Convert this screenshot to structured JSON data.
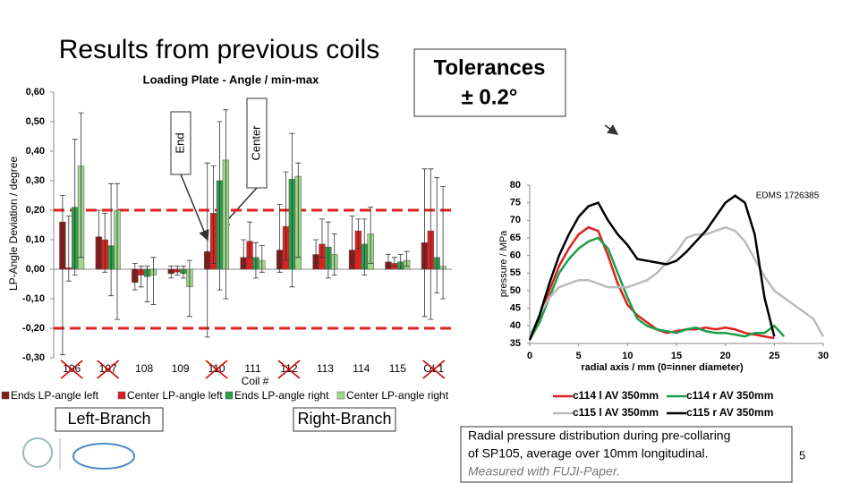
{
  "title": "Results from previous coils",
  "tolerances": {
    "title": "Tolerances",
    "value": "± 0.2°"
  },
  "callouts": [
    "End",
    "Center"
  ],
  "branches": [
    "Left-Branch",
    "Right-Branch"
  ],
  "caption": [
    "Radial pressure distribution during pre-collaring",
    "of SP105, average over 10mm longitudinal.",
    "Measured with FUJI-Paper."
  ],
  "page_number": "5",
  "chart_data": [
    {
      "type": "bar",
      "title": "Loading Plate - Angle / min-max",
      "x_label": "Coil #",
      "y_label": "LP-Angle Deviation / degree",
      "categories": [
        "106",
        "107",
        "108",
        "109",
        "110",
        "111",
        "112",
        "113",
        "114",
        "115",
        "OL1"
      ],
      "crossed_out": [
        true,
        true,
        false,
        false,
        true,
        false,
        true,
        false,
        false,
        false,
        true
      ],
      "series": [
        {
          "name": "Ends LP-angle left",
          "color": "#8b1a1a",
          "values": [
            0.16,
            0.11,
            -0.045,
            -0.015,
            0.06,
            0.04,
            0.065,
            0.05,
            0.065,
            0.025,
            0.09
          ],
          "min": [
            -0.29,
            0.01,
            -0.07,
            -0.03,
            -0.23,
            0.01,
            -0.01,
            0.02,
            0.02,
            0.01,
            -0.16
          ],
          "max": [
            0.25,
            0.2,
            0.02,
            0.01,
            0.36,
            0.1,
            0.22,
            0.1,
            0.18,
            0.05,
            0.34
          ]
        },
        {
          "name": "Center LP-angle left",
          "color": "#e02020",
          "values": [
            0.005,
            0.1,
            -0.02,
            -0.01,
            0.19,
            0.095,
            0.145,
            0.085,
            0.13,
            0.02,
            0.13
          ],
          "min": [
            -0.04,
            -0.01,
            -0.06,
            -0.02,
            0.02,
            0.04,
            0.03,
            0.04,
            0.07,
            0.01,
            -0.17
          ],
          "max": [
            0.18,
            0.19,
            0.01,
            0.01,
            0.35,
            0.16,
            0.33,
            0.17,
            0.17,
            0.04,
            0.34
          ]
        },
        {
          "name": "Ends LP-angle right",
          "color": "#2e9e4a",
          "values": [
            0.21,
            0.08,
            -0.025,
            -0.015,
            0.3,
            0.04,
            0.305,
            0.075,
            0.085,
            0.025,
            0.04
          ],
          "min": [
            -0.02,
            -0.09,
            -0.11,
            -0.03,
            -0.07,
            -0.03,
            -0.06,
            -0.03,
            -0.02,
            0.0,
            -0.08
          ],
          "max": [
            0.44,
            0.29,
            0.01,
            0.01,
            0.5,
            0.09,
            0.46,
            0.16,
            0.17,
            0.05,
            0.31
          ]
        },
        {
          "name": "Center LP-angle right",
          "color": "#9fd68a",
          "values": [
            0.35,
            0.2,
            -0.02,
            -0.06,
            0.37,
            0.03,
            0.315,
            0.05,
            0.12,
            0.03,
            0.01
          ],
          "min": [
            0.04,
            -0.17,
            -0.12,
            -0.16,
            -0.1,
            -0.01,
            0.04,
            -0.02,
            0.02,
            0.01,
            -0.1
          ],
          "max": [
            0.53,
            0.29,
            0.04,
            0.03,
            0.54,
            0.08,
            0.36,
            0.12,
            0.21,
            0.06,
            0.28
          ]
        }
      ],
      "reference_lines": [
        0.2,
        -0.2
      ],
      "reference_color": "#e02020",
      "ylim": [
        -0.3,
        0.6
      ],
      "yticks": [
        {
          "value": 0.6,
          "label": "0,60"
        },
        {
          "value": 0.5,
          "label": "0,50"
        },
        {
          "value": 0.4,
          "label": "0,40"
        },
        {
          "value": 0.3,
          "label": "0,30"
        },
        {
          "value": 0.2,
          "label": "0,20"
        },
        {
          "value": 0.1,
          "label": "0,10"
        },
        {
          "value": 0,
          "label": "0,00"
        },
        {
          "value": -0.1,
          "label": "-0,10"
        },
        {
          "value": -0.2,
          "label": "-0,20"
        },
        {
          "value": -0.3,
          "label": "-0,30"
        }
      ]
    },
    {
      "type": "line",
      "annotation": "EDMS 1726385",
      "x_label": "radial axis / mm (0=inner diameter)",
      "y_label": "pressure / MPa",
      "x": [
        0,
        1,
        2,
        3,
        4,
        5,
        6,
        7,
        8,
        9,
        10,
        11,
        12,
        13,
        14,
        15,
        16,
        17,
        18,
        19,
        20,
        21,
        22,
        23,
        24,
        25,
        26,
        27,
        28,
        29,
        30
      ],
      "series": [
        {
          "name": "c114 l AV 350mm",
          "color": "#e02020",
          "values": [
            36,
            42,
            50,
            57,
            62,
            66,
            68,
            67,
            60,
            52,
            46,
            43,
            41,
            39,
            38,
            38.5,
            39,
            39,
            39.5,
            39,
            39.5,
            39,
            38,
            37.5,
            37,
            36.5,
            null,
            null,
            null,
            null,
            null
          ]
        },
        {
          "name": "c114 r AV 350mm",
          "color": "#1aa04a",
          "values": [
            36,
            41,
            48,
            55,
            59,
            62,
            64,
            65,
            62,
            55,
            48,
            42,
            40,
            39,
            38.5,
            38,
            39,
            39.5,
            38.5,
            38,
            38,
            37.5,
            37,
            38,
            38,
            40,
            37,
            null,
            null,
            null,
            null
          ]
        },
        {
          "name": "c115 l AV 350mm",
          "color": "#bbbbbb",
          "values": [
            37,
            43,
            48,
            51,
            52,
            53,
            53,
            52,
            51,
            51,
            51,
            52,
            53,
            55,
            58,
            61,
            65,
            66,
            66,
            67,
            68,
            67,
            64,
            59,
            54,
            50,
            48,
            46,
            44,
            42,
            37
          ]
        },
        {
          "name": "c115 r AV 350mm",
          "color": "#000000",
          "values": [
            36,
            43,
            52,
            60,
            66,
            71,
            74,
            75,
            70,
            66,
            63,
            59,
            58.5,
            58,
            57.5,
            58.5,
            61,
            64,
            67,
            71,
            75,
            77,
            75,
            66,
            48,
            37,
            null,
            null,
            null,
            null,
            null
          ]
        }
      ],
      "xlim": [
        0,
        30
      ],
      "xticks": [
        0,
        5,
        10,
        15,
        20,
        25,
        30
      ],
      "ylim": [
        35,
        80
      ],
      "yticks": [
        35,
        40,
        45,
        50,
        55,
        60,
        65,
        70,
        75,
        80
      ]
    }
  ]
}
